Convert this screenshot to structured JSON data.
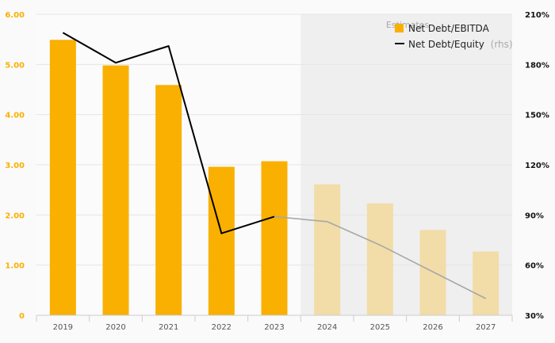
{
  "chart_data": {
    "type": "bar",
    "categories": [
      "2019",
      "2020",
      "2021",
      "2022",
      "2023",
      "2024",
      "2025",
      "2026",
      "2027"
    ],
    "estimates_label": "Estimates",
    "estimates_from": "2024",
    "series": [
      {
        "name": "Net Debt/EBITDA",
        "kind": "bar",
        "axis": "left",
        "values": [
          5.49,
          4.98,
          4.59,
          2.96,
          3.07,
          2.61,
          2.23,
          1.7,
          1.27
        ]
      },
      {
        "name": "Net Debt/Equity",
        "legend_suffix": "(rhs)",
        "kind": "line",
        "axis": "right",
        "values": [
          199,
          181,
          191,
          79,
          89,
          86,
          72,
          56,
          40
        ]
      }
    ],
    "left_axis": {
      "ylim": [
        0,
        6
      ],
      "ticks": [
        0,
        1,
        2,
        3,
        4,
        5,
        6
      ],
      "tick_labels": [
        "0",
        "1.00",
        "2.00",
        "3.00",
        "4.00",
        "5.00",
        "6.00"
      ]
    },
    "right_axis": {
      "ylim": [
        30,
        210
      ],
      "ticks": [
        30,
        60,
        90,
        120,
        150,
        180,
        210
      ],
      "tick_labels": [
        "30%",
        "60%",
        "90%",
        "120%",
        "150%",
        "180%",
        "210%"
      ]
    },
    "grid": true,
    "legend_position": "top-right",
    "colors": {
      "bar": "#f9b000",
      "bar_estimate": "#f2dca8",
      "line": "#000000",
      "line_estimate": "#a8a8a8",
      "estimate_shade": "#efefef",
      "left_tick": "#f9b000",
      "right_tick": "#111111",
      "category_tick": "#555555",
      "legend_text": "#222222",
      "legend_muted": "#aaaaaa",
      "estimates_text": "#a8a8a8"
    }
  }
}
